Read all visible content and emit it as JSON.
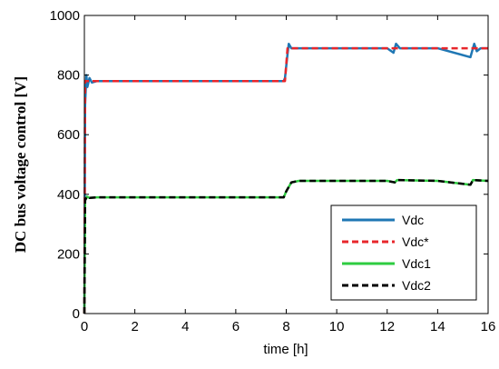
{
  "chart_data": {
    "type": "line",
    "xlabel": "time [h]",
    "ylabel": "DC bus voltage control [V]",
    "xlim": [
      0,
      16
    ],
    "ylim": [
      0,
      1000
    ],
    "xticks": [
      0,
      2,
      4,
      6,
      8,
      10,
      12,
      14,
      16
    ],
    "yticks": [
      0,
      200,
      400,
      600,
      800,
      1000
    ],
    "grid": false,
    "legend_position": "bottom-right",
    "series": [
      {
        "name": "Vdc",
        "color": "#1f77b4",
        "dash": "solid",
        "x": [
          0,
          0.03,
          0.08,
          0.12,
          0.2,
          0.3,
          0.5,
          1,
          2,
          4,
          6,
          7.9,
          7.95,
          8.05,
          8.1,
          8.2,
          8.4,
          9,
          10,
          12,
          12.25,
          12.35,
          12.5,
          14,
          15.3,
          15.45,
          15.55,
          15.7,
          16
        ],
        "y": [
          0,
          700,
          800,
          760,
          790,
          775,
          780,
          780,
          780,
          780,
          780,
          780,
          790,
          870,
          905,
          890,
          890,
          890,
          890,
          890,
          875,
          905,
          890,
          890,
          860,
          905,
          880,
          890,
          890
        ]
      },
      {
        "name": "Vdc*",
        "color": "#e8262b",
        "dash": "dashed",
        "x": [
          0,
          0.03,
          0.1,
          0.3,
          1,
          4,
          7.9,
          7.95,
          8.05,
          10,
          12,
          14,
          16
        ],
        "y": [
          0,
          780,
          780,
          780,
          780,
          780,
          780,
          780,
          890,
          890,
          890,
          890,
          890
        ]
      },
      {
        "name": "Vdc1",
        "color": "#2ecc40",
        "dash": "solid",
        "x": [
          0,
          0.03,
          0.1,
          0.2,
          0.5,
          1,
          4,
          7.9,
          8.0,
          8.2,
          8.5,
          10,
          12,
          12.3,
          12.4,
          14,
          15.3,
          15.4,
          16
        ],
        "y": [
          0,
          380,
          392,
          388,
          390,
          390,
          390,
          390,
          410,
          440,
          445,
          445,
          445,
          440,
          448,
          445,
          432,
          448,
          445
        ]
      },
      {
        "name": "Vdc2",
        "color": "#000000",
        "dash": "dashed",
        "x": [
          0,
          0.03,
          0.1,
          0.2,
          0.5,
          1,
          4,
          7.9,
          8.0,
          8.2,
          8.5,
          10,
          12,
          12.3,
          12.4,
          14,
          15.3,
          15.4,
          16
        ],
        "y": [
          0,
          380,
          392,
          388,
          390,
          390,
          390,
          390,
          410,
          440,
          445,
          445,
          445,
          440,
          448,
          445,
          432,
          448,
          445
        ]
      }
    ]
  }
}
